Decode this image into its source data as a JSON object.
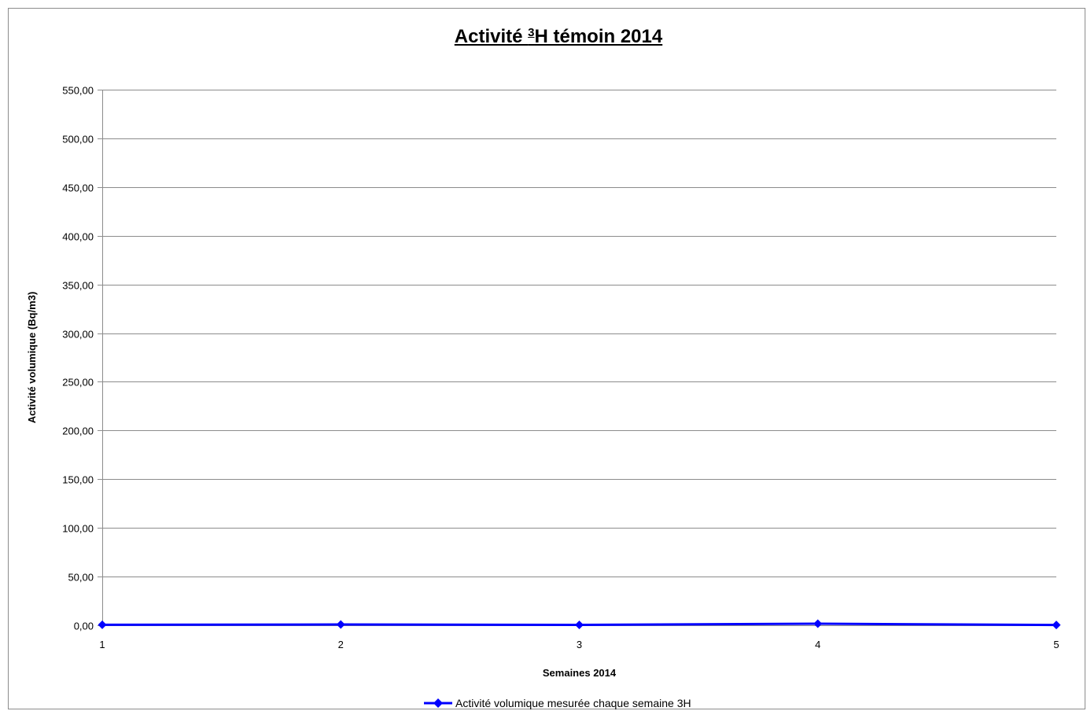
{
  "chart_data": {
    "type": "line",
    "title": "Activité 3H témoin 2014",
    "title_parts": {
      "before": "Activité ",
      "superscript": "3",
      "after": "H témoin 2014"
    },
    "xlabel": "Semaines 2014",
    "ylabel": "Activité volumique (Bq/m3)",
    "categories": [
      "1",
      "2",
      "3",
      "4",
      "5"
    ],
    "ylim": [
      0,
      550
    ],
    "y_ticks": [
      "0,00",
      "50,00",
      "100,00",
      "150,00",
      "200,00",
      "250,00",
      "300,00",
      "350,00",
      "400,00",
      "450,00",
      "500,00",
      "550,00"
    ],
    "grid": true,
    "legend_position": "bottom",
    "series": [
      {
        "name": "Activité volumique mesurée chaque semaine 3H",
        "color": "#0000ff",
        "marker": "diamond",
        "values": [
          0.5,
          0.8,
          0.4,
          1.6,
          0.3
        ]
      }
    ]
  }
}
